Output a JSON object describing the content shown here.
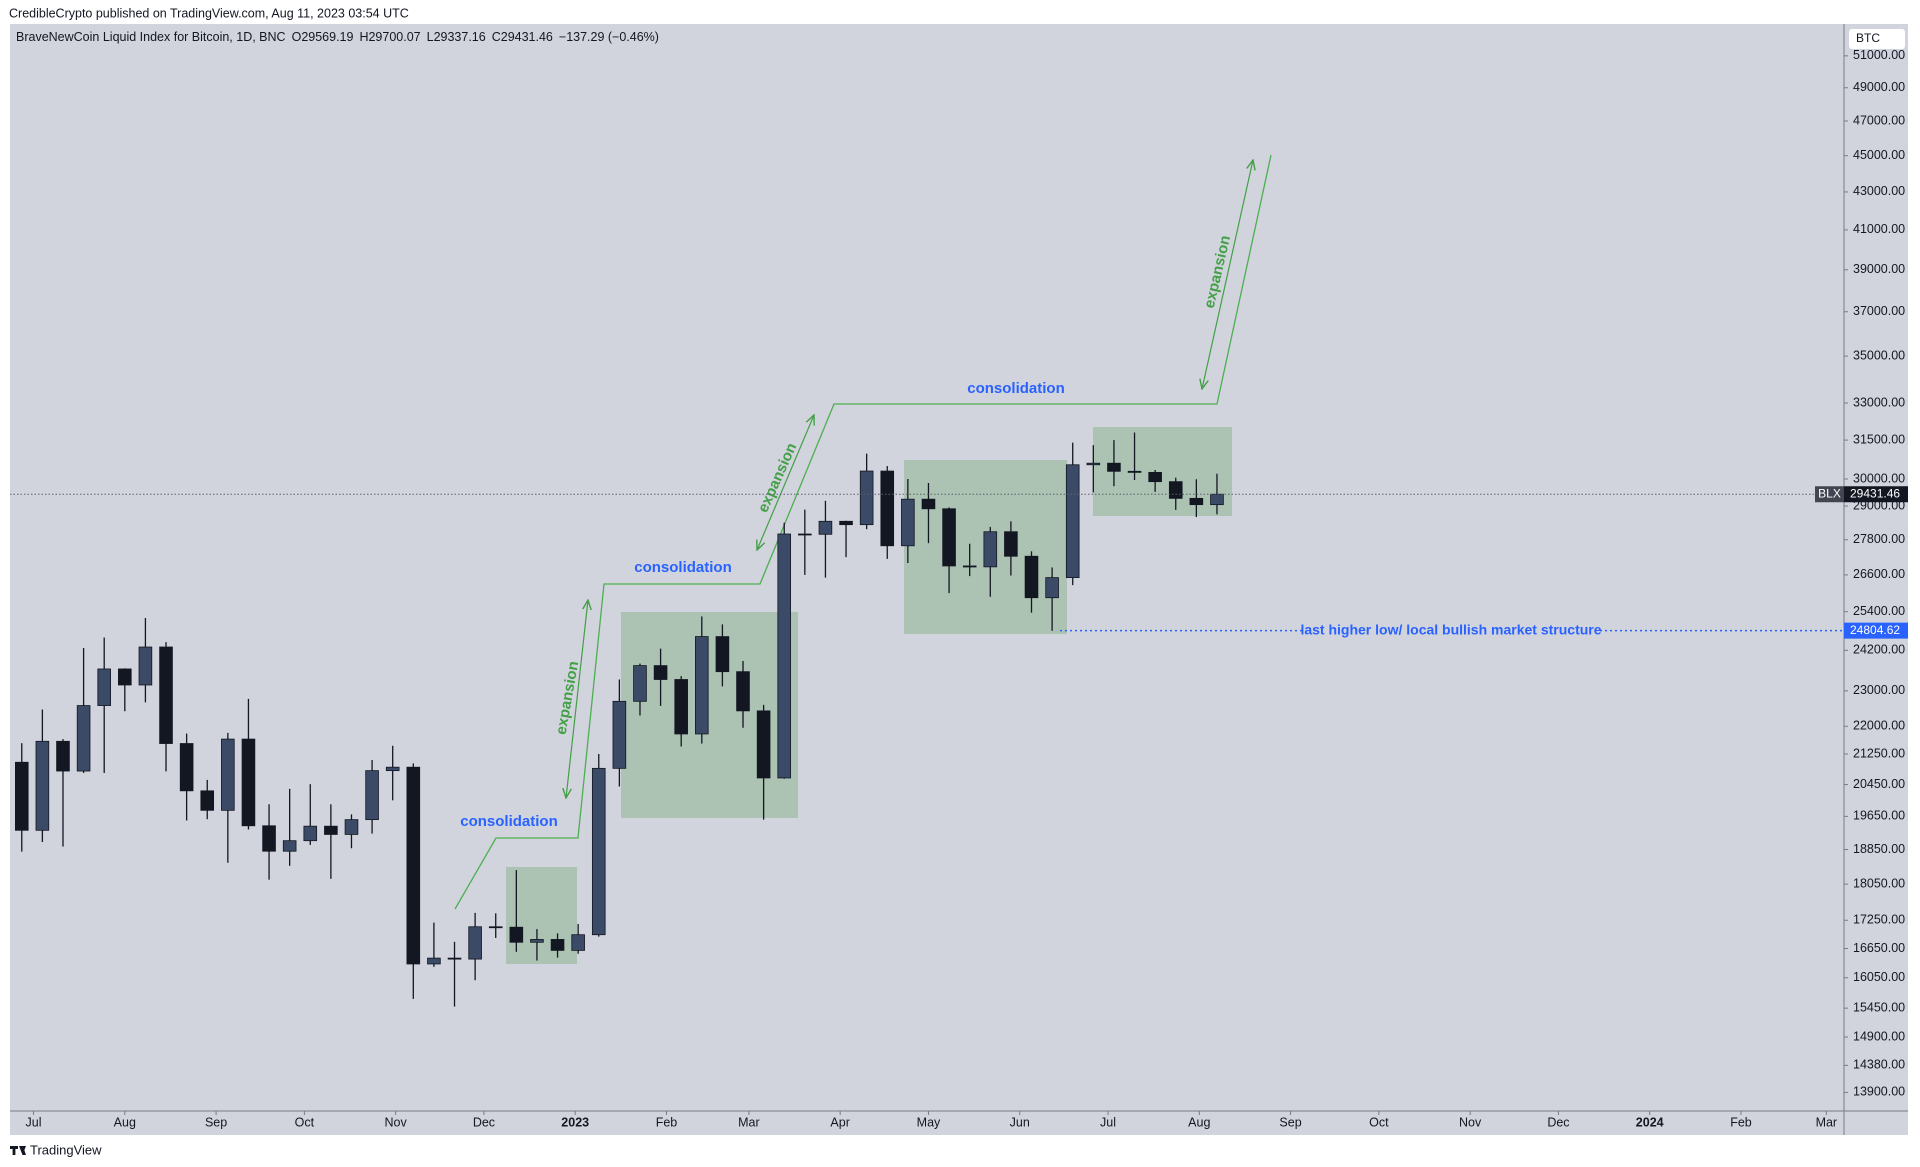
{
  "header": {
    "text": "CredibleCrypto published on TradingView.com, Aug 11, 2023 03:54 UTC"
  },
  "footer": {
    "brand": "TradingView"
  },
  "chart_data": {
    "type": "candlestick",
    "symbol": "BraveNewCoin Liquid Index for Bitcoin, 1D, BNC",
    "ohlc_legend": {
      "o_label": "O",
      "o": 29569.19,
      "h_label": "H",
      "h": 29700.07,
      "l_label": "L",
      "l": 29337.16,
      "c_label": "C",
      "c": 29431.46,
      "change": "−137.29 (−0.46%)"
    },
    "currency": "BTC",
    "x": [
      4,
      11,
      18,
      25,
      32,
      39,
      46,
      53,
      60,
      67,
      74,
      81,
      88,
      95,
      102,
      109,
      116,
      123,
      130,
      137,
      144,
      151,
      158,
      165,
      172,
      179,
      186,
      193,
      200,
      207,
      214,
      221,
      228,
      235,
      242,
      249,
      256,
      263,
      270,
      277,
      284,
      291,
      298,
      305,
      312,
      319,
      326,
      333,
      340,
      347,
      354,
      361,
      368,
      375,
      382,
      389,
      396,
      403,
      410
    ],
    "open": [
      21030,
      19310,
      21590,
      20800,
      22580,
      23640,
      23170,
      24300,
      21530,
      20290,
      19800,
      21650,
      19420,
      18810,
      19060,
      19410,
      19210,
      19570,
      20810,
      20900,
      16330,
      16450,
      16430,
      17110,
      17100,
      16780,
      16840,
      16610,
      16940,
      20870,
      22700,
      23740,
      23330,
      21790,
      24620,
      23560,
      22430,
      20620,
      28000,
      27990,
      28450,
      28330,
      30300,
      27590,
      29250,
      28900,
      26900,
      26870,
      28080,
      27230,
      25850,
      26510,
      30540,
      30600,
      30290,
      30250,
      29900,
      29280,
      29050
    ],
    "high": [
      21540,
      22470,
      21650,
      24270,
      24590,
      23660,
      25200,
      24450,
      21800,
      20570,
      21820,
      22770,
      19950,
      20340,
      20460,
      19950,
      19700,
      21090,
      21470,
      21000,
      17200,
      16790,
      17410,
      17400,
      18370,
      17060,
      16970,
      17170,
      21250,
      23330,
      23800,
      24250,
      23430,
      25250,
      25000,
      23880,
      22600,
      28400,
      28870,
      29190,
      28470,
      30970,
      30490,
      30000,
      29850,
      28950,
      27660,
      28250,
      28450,
      27400,
      26850,
      31400,
      31300,
      31500,
      31800,
      30340,
      30050,
      29990,
      30200
    ],
    "low": [
      18800,
      19030,
      18920,
      20750,
      20750,
      22420,
      22670,
      20790,
      19550,
      19580,
      18540,
      19330,
      18150,
      18470,
      18960,
      18170,
      18880,
      19230,
      20050,
      15630,
      16270,
      15480,
      16000,
      16870,
      16580,
      16400,
      16460,
      16540,
      16900,
      20400,
      22300,
      22570,
      21450,
      21530,
      23130,
      21960,
      19570,
      20600,
      26600,
      26510,
      27200,
      28170,
      27140,
      27000,
      27680,
      26000,
      26560,
      25880,
      26580,
      25370,
      24800,
      26260,
      29500,
      29730,
      29960,
      29520,
      28860,
      28600,
      28700
    ],
    "close": [
      19310,
      21590,
      20800,
      22580,
      23640,
      23170,
      24300,
      21530,
      20290,
      19800,
      21650,
      19420,
      18810,
      19060,
      19410,
      19210,
      19570,
      20810,
      20900,
      16330,
      16450,
      16430,
      17110,
      17100,
      16780,
      16840,
      16610,
      16940,
      20870,
      22700,
      23740,
      23330,
      21790,
      24620,
      23560,
      22430,
      20620,
      28000,
      27990,
      28450,
      28330,
      30300,
      27590,
      29250,
      28900,
      26900,
      26870,
      28080,
      27230,
      25850,
      26510,
      30540,
      30600,
      30290,
      30250,
      29900,
      29280,
      29050,
      29431.46
    ],
    "up_color": "#3b4a66",
    "down_color": "#131722",
    "xlim": [
      0,
      623
    ],
    "xticks": [
      {
        "value": 8,
        "label": "Jul"
      },
      {
        "value": 39,
        "label": "Aug"
      },
      {
        "value": 70,
        "label": "Sep"
      },
      {
        "value": 100,
        "label": "Oct"
      },
      {
        "value": 131,
        "label": "Nov"
      },
      {
        "value": 161,
        "label": "Dec"
      },
      {
        "value": 192,
        "label": "2023"
      },
      {
        "value": 223,
        "label": "Feb"
      },
      {
        "value": 251,
        "label": "Mar"
      },
      {
        "value": 282,
        "label": "Apr"
      },
      {
        "value": 312,
        "label": "May"
      },
      {
        "value": 343,
        "label": "Jun"
      },
      {
        "value": 373,
        "label": "Jul"
      },
      {
        "value": 404,
        "label": "Aug"
      },
      {
        "value": 435,
        "label": "Sep"
      },
      {
        "value": 465,
        "label": "Oct"
      },
      {
        "value": 496,
        "label": "Nov"
      },
      {
        "value": 526,
        "label": "Dec"
      },
      {
        "value": 557,
        "label": "2024"
      },
      {
        "value": 588,
        "label": "Feb"
      },
      {
        "value": 617,
        "label": "Mar"
      }
    ],
    "ylim": [
      13580,
      53080
    ],
    "log_scale": true,
    "grid": false,
    "yticks": [
      {
        "value": 51000,
        "label": "51000.00"
      },
      {
        "value": 49000,
        "label": "49000.00"
      },
      {
        "value": 47000,
        "label": "47000.00"
      },
      {
        "value": 45000,
        "label": "45000.00"
      },
      {
        "value": 43000,
        "label": "43000.00"
      },
      {
        "value": 41000,
        "label": "41000.00"
      },
      {
        "value": 39000,
        "label": "39000.00"
      },
      {
        "value": 37000,
        "label": "37000.00"
      },
      {
        "value": 35000,
        "label": "35000.00"
      },
      {
        "value": 33000,
        "label": "33000.00"
      },
      {
        "value": 31500,
        "label": "31500.00"
      },
      {
        "value": 30000,
        "label": "30000.00"
      },
      {
        "value": 29000,
        "label": "29000.00"
      },
      {
        "value": 27800,
        "label": "27800.00"
      },
      {
        "value": 26600,
        "label": "26600.00"
      },
      {
        "value": 25400,
        "label": "25400.00"
      },
      {
        "value": 24200,
        "label": "24200.00"
      },
      {
        "value": 23000,
        "label": "23000.00"
      },
      {
        "value": 22000,
        "label": "22000.00"
      },
      {
        "value": 21250,
        "label": "21250.00"
      },
      {
        "value": 20450,
        "label": "20450.00"
      },
      {
        "value": 19650,
        "label": "19650.00"
      },
      {
        "value": 18850,
        "label": "18850.00"
      },
      {
        "value": 18050,
        "label": "18050.00"
      },
      {
        "value": 17250,
        "label": "17250.00"
      },
      {
        "value": 16650,
        "label": "16650.00"
      },
      {
        "value": 16050,
        "label": "16050.00"
      },
      {
        "value": 15450,
        "label": "15450.00"
      },
      {
        "value": 14900,
        "label": "14900.00"
      },
      {
        "value": 14380,
        "label": "14380.00"
      },
      {
        "value": 13900,
        "label": "13900.00"
      }
    ],
    "last_price": {
      "value": 29431.46,
      "label": "BLX",
      "color": "#131722"
    },
    "level": {
      "value": 24804.62,
      "label": "last higher low/ local bullish market structure",
      "color": "#2962ff"
    },
    "annotations": {
      "consolidation": [
        "consolidation",
        "consolidation",
        "consolidation"
      ],
      "expansion": [
        "expansion",
        "expansion",
        "expansion"
      ]
    }
  }
}
